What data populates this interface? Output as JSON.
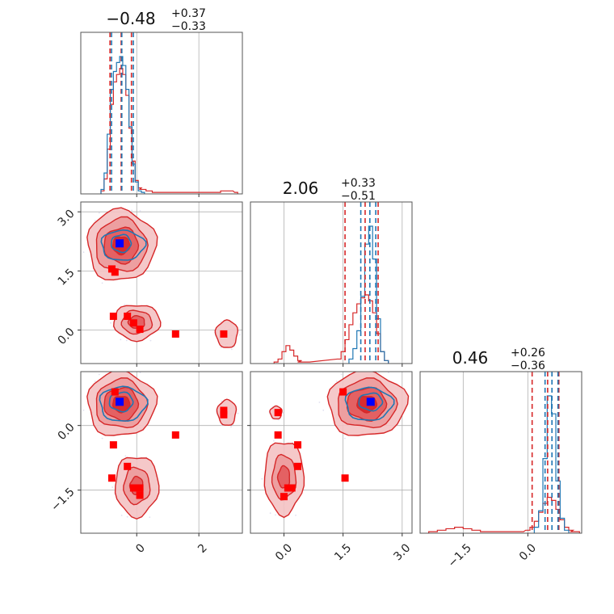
{
  "colors": {
    "primary": "#1f77b4",
    "secondary": "#d62728",
    "marker_secondary": "#ff0000",
    "marker_primary": "#0000ff"
  },
  "chart_data": {
    "type": "corner",
    "parameters": [
      {
        "index": 0,
        "title": {
          "median": "−0.48",
          "plus": "+0.37",
          "minus": "−0.33"
        },
        "range": [
          -1.8,
          3.4
        ],
        "ticks": [
          {
            "v": 0,
            "label": "0"
          },
          {
            "v": 2,
            "label": "2"
          }
        ],
        "quantiles_primary": [
          -0.81,
          -0.48,
          -0.11
        ],
        "quantiles_secondary": [
          -0.86,
          -0.5,
          -0.17
        ],
        "hist_primary": {
          "bins": [
            -1.1,
            -1.0,
            -0.9,
            -0.8,
            -0.7,
            -0.6,
            -0.5,
            -0.4,
            -0.3,
            -0.2,
            -0.1,
            0.0,
            0.1,
            0.2
          ],
          "counts": [
            3,
            14,
            40,
            70,
            82,
            88,
            92,
            86,
            70,
            45,
            20,
            8,
            2,
            1
          ]
        },
        "hist_secondary": {
          "bins": [
            -1.1,
            -1.0,
            -0.9,
            -0.8,
            -0.7,
            -0.6,
            -0.5,
            -0.4,
            -0.3,
            -0.2,
            -0.1,
            0.0,
            0.1,
            0.2,
            0.4,
            0.6,
            0.8,
            1.0,
            2.6,
            2.8,
            3.0,
            3.2
          ],
          "counts": [
            2,
            10,
            30,
            60,
            75,
            80,
            84,
            80,
            66,
            44,
            22,
            9,
            4,
            3,
            2,
            1,
            1,
            1,
            1,
            2,
            2,
            1
          ]
        }
      },
      {
        "index": 1,
        "title": {
          "median": "2.06",
          "plus": "+0.33",
          "minus": "−0.51"
        },
        "range": [
          -0.85,
          3.25
        ],
        "ticks": [
          {
            "v": 0,
            "label": "0.0"
          },
          {
            "v": 1.5,
            "label": "1.5"
          },
          {
            "v": 3,
            "label": "3.0"
          }
        ],
        "quantiles_primary": [
          1.95,
          2.18,
          2.33
        ],
        "quantiles_secondary": [
          1.55,
          2.06,
          2.39
        ],
        "hist_primary": {
          "bins": [
            1.7,
            1.8,
            1.9,
            2.0,
            2.1,
            2.2,
            2.3,
            2.4,
            2.5,
            2.6
          ],
          "counts": [
            3,
            10,
            22,
            45,
            80,
            92,
            70,
            30,
            8,
            2
          ]
        },
        "hist_secondary": {
          "bins": [
            -0.2,
            -0.1,
            0.0,
            0.1,
            0.2,
            0.3,
            0.4,
            0.5,
            1.4,
            1.5,
            1.6,
            1.7,
            1.8,
            1.9,
            2.0,
            2.1,
            2.2,
            2.3,
            2.4,
            2.5,
            2.6
          ],
          "counts": [
            1,
            3,
            8,
            12,
            9,
            5,
            2,
            1,
            3,
            8,
            16,
            26,
            34,
            40,
            44,
            46,
            42,
            34,
            20,
            8,
            2
          ]
        }
      },
      {
        "index": 2,
        "title": {
          "median": "0.46",
          "plus": "+0.26",
          "minus": "−0.36"
        },
        "range": [
          -2.5,
          1.25
        ],
        "ticks": [
          {
            "v": -1.5,
            "label": "−1.5"
          },
          {
            "v": 0,
            "label": "0.0"
          }
        ],
        "quantiles_primary": [
          0.4,
          0.56,
          0.7
        ],
        "quantiles_secondary": [
          0.1,
          0.46,
          0.72
        ],
        "hist_primary": {
          "bins": [
            0.2,
            0.3,
            0.4,
            0.5,
            0.6,
            0.7,
            0.8,
            0.9
          ],
          "counts": [
            4,
            15,
            50,
            92,
            80,
            35,
            10,
            2
          ]
        },
        "hist_secondary": {
          "bins": [
            -2.2,
            -2.0,
            -1.8,
            -1.6,
            -1.4,
            -1.2,
            -1.0,
            -0.8,
            -0.6,
            -0.4,
            -0.2,
            0.0,
            0.1,
            0.2,
            0.3,
            0.4,
            0.5,
            0.6,
            0.7,
            0.8,
            0.9,
            1.0,
            1.1
          ],
          "counts": [
            1,
            2,
            3,
            4,
            3,
            2,
            1,
            1,
            1,
            1,
            1,
            2,
            4,
            8,
            14,
            20,
            24,
            22,
            16,
            9,
            4,
            2,
            1
          ]
        }
      }
    ],
    "pairs": [
      {
        "x_param": 0,
        "y_param": 1,
        "blobs_primary": [
          {
            "cx": -0.5,
            "cy": 2.2,
            "rx": 0.32,
            "ry": 0.22
          },
          {
            "cx": -0.45,
            "cy": 2.15,
            "rx": 0.7,
            "ry": 0.38
          }
        ],
        "blobs_secondary": [
          {
            "cx": -0.5,
            "cy": 2.15,
            "rx": 1.1,
            "ry": 0.9,
            "levels": [
              1.0,
              0.75,
              0.5,
              0.25
            ]
          },
          {
            "cx": 0.0,
            "cy": 0.2,
            "rx": 0.75,
            "ry": 0.45,
            "levels": [
              1.0,
              0.65,
              0.35
            ]
          },
          {
            "cx": 2.9,
            "cy": -0.1,
            "rx": 0.35,
            "ry": 0.35,
            "levels": [
              1.0
            ]
          }
        ],
        "markers_secondary": [
          [
            -0.8,
            1.55
          ],
          [
            -0.7,
            1.47
          ],
          [
            -0.75,
            0.35
          ],
          [
            -0.3,
            0.35
          ],
          [
            -0.1,
            0.18
          ],
          [
            0.1,
            0.02
          ],
          [
            1.25,
            -0.1
          ],
          [
            2.8,
            -0.1
          ]
        ],
        "markers_primary": [
          [
            -0.55,
            2.2
          ]
        ]
      },
      {
        "x_param": 0,
        "y_param": 2,
        "blobs_primary": [
          {
            "cx": -0.5,
            "cy": 0.55,
            "rx": 0.38,
            "ry": 0.22
          },
          {
            "cx": -0.45,
            "cy": 0.5,
            "rx": 0.75,
            "ry": 0.4
          }
        ],
        "blobs_secondary": [
          {
            "cx": -0.5,
            "cy": 0.5,
            "rx": 1.1,
            "ry": 0.75,
            "levels": [
              1.0,
              0.75,
              0.5,
              0.25
            ]
          },
          {
            "cx": 0.0,
            "cy": -1.4,
            "rx": 0.7,
            "ry": 0.7,
            "levels": [
              1.0,
              0.6,
              0.3
            ]
          },
          {
            "cx": 2.9,
            "cy": 0.3,
            "rx": 0.3,
            "ry": 0.3,
            "levels": [
              1.0
            ]
          }
        ],
        "markers_secondary": [
          [
            -0.7,
            0.78
          ],
          [
            -0.75,
            -0.45
          ],
          [
            -0.3,
            -0.95
          ],
          [
            -0.8,
            -1.22
          ],
          [
            -0.1,
            -1.45
          ],
          [
            0.1,
            -1.45
          ],
          [
            0.1,
            -1.62
          ],
          [
            1.25,
            -0.22
          ],
          [
            2.8,
            0.35
          ],
          [
            2.8,
            0.25
          ]
        ],
        "markers_primary": [
          [
            -0.55,
            0.55
          ]
        ]
      },
      {
        "x_param": 1,
        "y_param": 2,
        "blobs_primary": [
          {
            "cx": 2.2,
            "cy": 0.55,
            "rx": 0.3,
            "ry": 0.2
          },
          {
            "cx": 2.15,
            "cy": 0.5,
            "rx": 0.6,
            "ry": 0.38
          }
        ],
        "blobs_secondary": [
          {
            "cx": 2.1,
            "cy": 0.5,
            "rx": 1.0,
            "ry": 0.75,
            "levels": [
              1.0,
              0.75,
              0.5,
              0.25
            ]
          },
          {
            "cx": 0.0,
            "cy": -1.2,
            "rx": 0.5,
            "ry": 0.85,
            "levels": [
              1.0,
              0.6,
              0.3
            ]
          },
          {
            "cx": -0.2,
            "cy": 0.3,
            "rx": 0.15,
            "ry": 0.15,
            "levels": [
              1.0
            ]
          }
        ],
        "markers_secondary": [
          [
            1.5,
            0.78
          ],
          [
            -0.15,
            0.3
          ],
          [
            -0.15,
            -0.22
          ],
          [
            0.35,
            -0.45
          ],
          [
            0.35,
            -0.95
          ],
          [
            0.1,
            -1.45
          ],
          [
            0.2,
            -1.45
          ],
          [
            0.0,
            -1.65
          ],
          [
            1.55,
            -1.22
          ]
        ],
        "markers_primary": [
          [
            2.2,
            0.55
          ]
        ]
      }
    ]
  }
}
